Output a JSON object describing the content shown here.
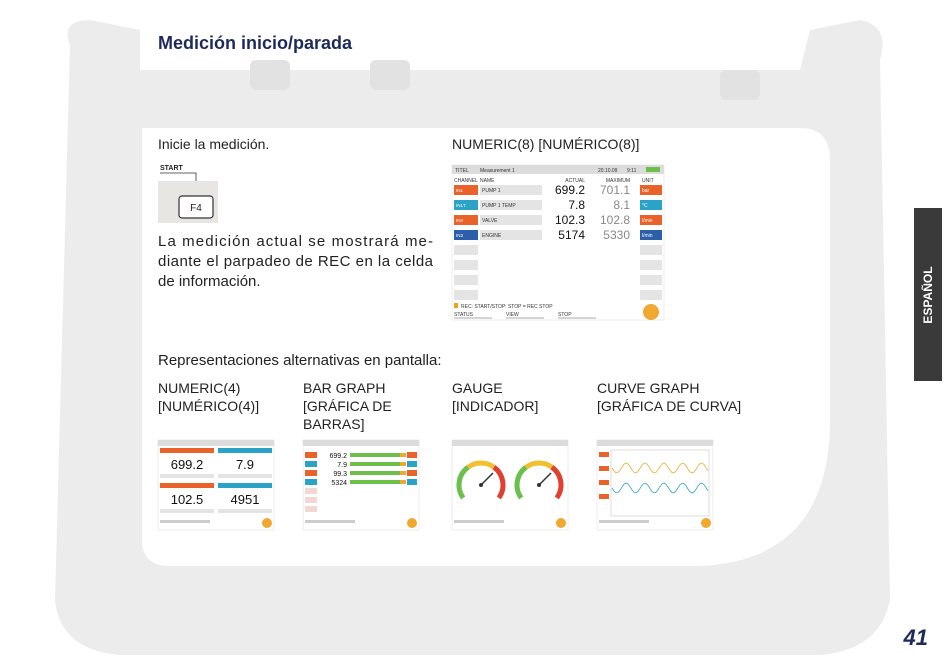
{
  "header": {
    "title": "Medición inicio/parada"
  },
  "left": {
    "instruction": "Inicie la medición.",
    "key_label": "START",
    "key": "F4",
    "paragraph": [
      "La medición actual se mostrará me-",
      "diante el parpadeo de REC en la celda",
      "de información."
    ]
  },
  "screen": {
    "heading": "NUMERIC(8) [NUMÉRICO(8)]",
    "title_label": "TITEL",
    "title_value": "Measurement 1",
    "date": "20.10.09",
    "time": "9:11",
    "columns": [
      "CHANNEL",
      "NAME",
      "ACTUAL",
      "MAXIMUM",
      "UNIT"
    ],
    "rows": [
      {
        "channel": "IN1",
        "name": "PUMP 1",
        "actual": "699.2",
        "maximum": "701.1",
        "unit": "bar",
        "color": "#e8622a"
      },
      {
        "channel": "IN1T",
        "name": "PUMP 1 TEMP",
        "actual": "7.8",
        "maximum": "8.1",
        "unit": "°C",
        "color": "#2aa3c6"
      },
      {
        "channel": "IN2",
        "name": "VALVE",
        "actual": "102.3",
        "maximum": "102.8",
        "unit": "l/min",
        "color": "#e8622a"
      },
      {
        "channel": "IN3",
        "name": "ENGINE",
        "actual": "5174",
        "maximum": "5330",
        "unit": "l/min",
        "color": "#2c5fa8"
      }
    ],
    "status_line": "REC: START/STOP: STOP = REC STOP",
    "softkeys": [
      "STATUS",
      "VIEW",
      "STOP"
    ]
  },
  "alternatives": {
    "heading": "Representaciones alternativas en pantalla:",
    "items": [
      {
        "caption": [
          "NUMERIC(4)",
          "[NUMÉRICO(4)]"
        ],
        "values": [
          "699.2",
          "7.9",
          "102.5",
          "4951"
        ]
      },
      {
        "caption": [
          "BAR GRAPH",
          "[GRÁFICA DE",
          "BARRAS]"
        ],
        "values": [
          "699.2",
          "7.9",
          "99.3",
          "5324"
        ]
      },
      {
        "caption": [
          "GAUGE",
          "[INDICADOR]"
        ]
      },
      {
        "caption": [
          "CURVE GRAPH",
          "[GRÁFICA DE CURVA]"
        ]
      }
    ]
  },
  "side_tab": "ESPAÑOL",
  "page_number": "41"
}
